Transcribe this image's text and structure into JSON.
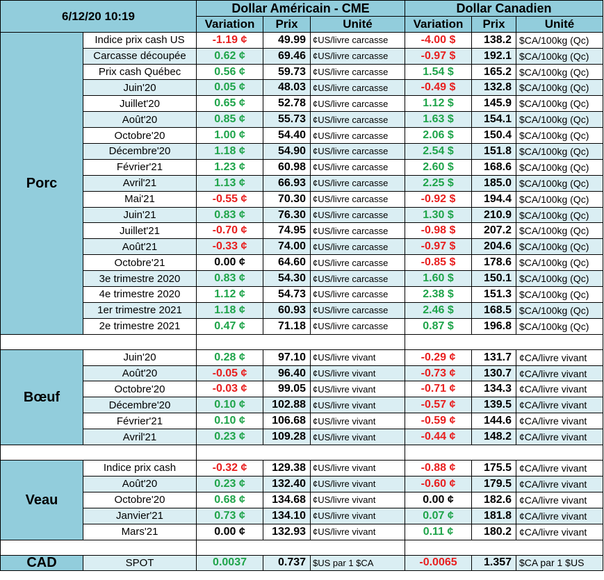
{
  "header": {
    "datetime": "6/12/20 10:19",
    "usd_title": "Dollar Américain - CME",
    "cad_title": "Dollar Canadien",
    "variation": "Variation",
    "prix": "Prix",
    "unite": "Unité"
  },
  "colors": {
    "header_bg": "#92cddc",
    "row_alt_bg": "#daeef3",
    "positive": "#1fa44a",
    "negative": "#e82020"
  },
  "porc": {
    "label": "Porc",
    "rows": [
      {
        "name": "Indice prix cash US",
        "usd_var": "-1.19 ¢",
        "usd_prix": "49.99",
        "usd_unit": "¢US/livre carcasse",
        "cad_var": "-4.00 $",
        "cad_prix": "138.2",
        "cad_unit": "$CA/100kg (Qc)"
      },
      {
        "name": "Carcasse découpée",
        "usd_var": "0.62 ¢",
        "usd_prix": "69.46",
        "usd_unit": "¢US/livre carcasse",
        "cad_var": "-0.97 $",
        "cad_prix": "192.1",
        "cad_unit": "$CA/100kg (Qc)"
      },
      {
        "name": "Prix cash Québec",
        "usd_var": "0.56 ¢",
        "usd_prix": "59.73",
        "usd_unit": "¢US/livre carcasse",
        "cad_var": "1.54 $",
        "cad_prix": "165.2",
        "cad_unit": "$CA/100kg (Qc)"
      },
      {
        "name": "Juin'20",
        "usd_var": "0.05 ¢",
        "usd_prix": "48.03",
        "usd_unit": "¢US/livre carcasse",
        "cad_var": "-0.49 $",
        "cad_prix": "132.8",
        "cad_unit": "$CA/100kg (Qc)"
      },
      {
        "name": "Juillet'20",
        "usd_var": "0.65 ¢",
        "usd_prix": "52.78",
        "usd_unit": "¢US/livre carcasse",
        "cad_var": "1.12 $",
        "cad_prix": "145.9",
        "cad_unit": "$CA/100kg (Qc)"
      },
      {
        "name": "Août'20",
        "usd_var": "0.85 ¢",
        "usd_prix": "55.73",
        "usd_unit": "¢US/livre carcasse",
        "cad_var": "1.63 $",
        "cad_prix": "154.1",
        "cad_unit": "$CA/100kg (Qc)"
      },
      {
        "name": "Octobre'20",
        "usd_var": "1.00 ¢",
        "usd_prix": "54.40",
        "usd_unit": "¢US/livre carcasse",
        "cad_var": "2.06 $",
        "cad_prix": "150.4",
        "cad_unit": "$CA/100kg (Qc)"
      },
      {
        "name": "Décembre'20",
        "usd_var": "1.18 ¢",
        "usd_prix": "54.90",
        "usd_unit": "¢US/livre carcasse",
        "cad_var": "2.54 $",
        "cad_prix": "151.8",
        "cad_unit": "$CA/100kg (Qc)"
      },
      {
        "name": "Février'21",
        "usd_var": "1.23 ¢",
        "usd_prix": "60.98",
        "usd_unit": "¢US/livre carcasse",
        "cad_var": "2.60 $",
        "cad_prix": "168.6",
        "cad_unit": "$CA/100kg (Qc)"
      },
      {
        "name": "Avril'21",
        "usd_var": "1.13 ¢",
        "usd_prix": "66.93",
        "usd_unit": "¢US/livre carcasse",
        "cad_var": "2.25 $",
        "cad_prix": "185.0",
        "cad_unit": "$CA/100kg (Qc)"
      },
      {
        "name": "Mai'21",
        "usd_var": "-0.55 ¢",
        "usd_prix": "70.30",
        "usd_unit": "¢US/livre carcasse",
        "cad_var": "-0.92 $",
        "cad_prix": "194.4",
        "cad_unit": "$CA/100kg (Qc)"
      },
      {
        "name": "Juin'21",
        "usd_var": "0.83 ¢",
        "usd_prix": "76.30",
        "usd_unit": "¢US/livre carcasse",
        "cad_var": "1.30 $",
        "cad_prix": "210.9",
        "cad_unit": "$CA/100kg (Qc)"
      },
      {
        "name": "Juillet'21",
        "usd_var": "-0.70 ¢",
        "usd_prix": "74.95",
        "usd_unit": "¢US/livre carcasse",
        "cad_var": "-0.98 $",
        "cad_prix": "207.2",
        "cad_unit": "$CA/100kg (Qc)"
      },
      {
        "name": "Août'21",
        "usd_var": "-0.33 ¢",
        "usd_prix": "74.00",
        "usd_unit": "¢US/livre carcasse",
        "cad_var": "-0.97 $",
        "cad_prix": "204.6",
        "cad_unit": "$CA/100kg (Qc)"
      },
      {
        "name": "Octobre'21",
        "usd_var": "0.00 ¢",
        "usd_prix": "64.60",
        "usd_unit": "¢US/livre carcasse",
        "cad_var": "-0.85 $",
        "cad_prix": "178.6",
        "cad_unit": "$CA/100kg (Qc)"
      },
      {
        "name": "3e trimestre 2020",
        "usd_var": "0.83 ¢",
        "usd_prix": "54.30",
        "usd_unit": "¢US/livre carcasse",
        "cad_var": "1.60 $",
        "cad_prix": "150.1",
        "cad_unit": "$CA/100kg (Qc)"
      },
      {
        "name": "4e trimestre 2020",
        "usd_var": "1.12 ¢",
        "usd_prix": "54.73",
        "usd_unit": "¢US/livre carcasse",
        "cad_var": "2.38 $",
        "cad_prix": "151.3",
        "cad_unit": "$CA/100kg (Qc)"
      },
      {
        "name": "1er trimestre 2021",
        "usd_var": "1.18 ¢",
        "usd_prix": "60.93",
        "usd_unit": "¢US/livre carcasse",
        "cad_var": "2.46 $",
        "cad_prix": "168.5",
        "cad_unit": "$CA/100kg (Qc)"
      },
      {
        "name": "2e trimestre 2021",
        "usd_var": "0.47 ¢",
        "usd_prix": "71.18",
        "usd_unit": "¢US/livre carcasse",
        "cad_var": "0.87 $",
        "cad_prix": "196.8",
        "cad_unit": "$CA/100kg (Qc)"
      }
    ]
  },
  "boeuf": {
    "label": "Bœuf",
    "rows": [
      {
        "name": "Juin'20",
        "usd_var": "0.28 ¢",
        "usd_prix": "97.10",
        "usd_unit": "¢US/livre vivant",
        "cad_var": "-0.29 ¢",
        "cad_prix": "131.7",
        "cad_unit": "¢CA/livre vivant"
      },
      {
        "name": "Août'20",
        "usd_var": "-0.05 ¢",
        "usd_prix": "96.40",
        "usd_unit": "¢US/livre vivant",
        "cad_var": "-0.73 ¢",
        "cad_prix": "130.7",
        "cad_unit": "¢CA/livre vivant"
      },
      {
        "name": "Octobre'20",
        "usd_var": "-0.03 ¢",
        "usd_prix": "99.05",
        "usd_unit": "¢US/livre vivant",
        "cad_var": "-0.71 ¢",
        "cad_prix": "134.3",
        "cad_unit": "¢CA/livre vivant"
      },
      {
        "name": "Décembre'20",
        "usd_var": "0.10 ¢",
        "usd_prix": "102.88",
        "usd_unit": "¢US/livre vivant",
        "cad_var": "-0.57 ¢",
        "cad_prix": "139.5",
        "cad_unit": "¢CA/livre vivant"
      },
      {
        "name": "Février'21",
        "usd_var": "0.10 ¢",
        "usd_prix": "106.68",
        "usd_unit": "¢US/livre vivant",
        "cad_var": "-0.59 ¢",
        "cad_prix": "144.6",
        "cad_unit": "¢CA/livre vivant"
      },
      {
        "name": "Avril'21",
        "usd_var": "0.23 ¢",
        "usd_prix": "109.28",
        "usd_unit": "¢US/livre vivant",
        "cad_var": "-0.44 ¢",
        "cad_prix": "148.2",
        "cad_unit": "¢CA/livre vivant"
      }
    ]
  },
  "veau": {
    "label": "Veau",
    "rows": [
      {
        "name": "Indice prix cash",
        "usd_var": "-0.32 ¢",
        "usd_prix": "129.38",
        "usd_unit": "¢US/livre vivant",
        "cad_var": "-0.88 ¢",
        "cad_prix": "175.5",
        "cad_unit": "¢CA/livre vivant"
      },
      {
        "name": "Août'20",
        "usd_var": "0.23 ¢",
        "usd_prix": "132.40",
        "usd_unit": "¢US/livre vivant",
        "cad_var": "-0.60 ¢",
        "cad_prix": "179.5",
        "cad_unit": "¢CA/livre vivant"
      },
      {
        "name": "Octobre'20",
        "usd_var": "0.68 ¢",
        "usd_prix": "134.68",
        "usd_unit": "¢US/livre vivant",
        "cad_var": "0.00 ¢",
        "cad_prix": "182.6",
        "cad_unit": "¢CA/livre vivant"
      },
      {
        "name": "Janvier'21",
        "usd_var": "0.73 ¢",
        "usd_prix": "134.10",
        "usd_unit": "¢US/livre vivant",
        "cad_var": "0.07 ¢",
        "cad_prix": "181.8",
        "cad_unit": "¢CA/livre vivant"
      },
      {
        "name": "Mars'21",
        "usd_var": "0.00 ¢",
        "usd_prix": "132.93",
        "usd_unit": "¢US/livre vivant",
        "cad_var": "0.11 ¢",
        "cad_prix": "180.2",
        "cad_unit": "¢CA/livre vivant"
      }
    ]
  },
  "cad": {
    "label": "CAD",
    "name": "SPOT",
    "usd_var": "0.0037",
    "usd_prix": "0.737",
    "usd_unit": "$US par 1 $CA",
    "cad_var": "-0.0065",
    "cad_prix": "1.357",
    "cad_unit": "$CA par 1 $US"
  }
}
